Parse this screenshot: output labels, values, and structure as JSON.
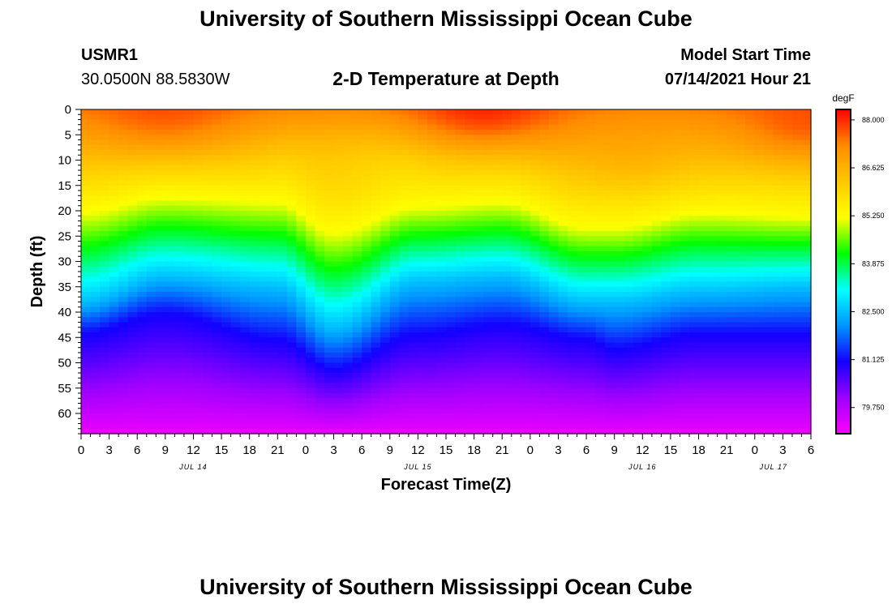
{
  "header": {
    "top_title": "University of Southern Mississippi Ocean Cube",
    "bottom_title": "University of Southern Mississippi Ocean Cube",
    "station_id": "USMR1",
    "coordinates": "30.0500N  88.5830W",
    "model_start_label": "Model Start Time",
    "model_start_value": "07/14/2021 Hour 21"
  },
  "chart_data": {
    "type": "heatmap",
    "title": "2-D Temperature at Depth",
    "xlabel": "Forecast Time(Z)",
    "ylabel": "Depth (ft)",
    "x_unit": "hours since 07/14 00Z",
    "xlim": [
      0,
      78
    ],
    "ylim": [
      0,
      64
    ],
    "x_tick_labels": [
      "0",
      "3",
      "6",
      "9",
      "12",
      "15",
      "18",
      "21",
      "0",
      "3",
      "6",
      "9",
      "12",
      "15",
      "18",
      "21",
      "0",
      "3",
      "6",
      "9",
      "12",
      "15",
      "18",
      "21",
      "0",
      "3",
      "6"
    ],
    "x_tick_step_hours": 3,
    "y_ticks": [
      0,
      5,
      10,
      15,
      20,
      25,
      30,
      35,
      40,
      45,
      50,
      55,
      60
    ],
    "date_labels": [
      {
        "text": "JUL 14",
        "hour": 12
      },
      {
        "text": "JUL 15",
        "hour": 36
      },
      {
        "text": "JUL 16",
        "hour": 60
      },
      {
        "text": "JUL 17",
        "hour": 74
      }
    ],
    "colorbar": {
      "unit": "degF",
      "min": 79.0,
      "max": 88.3,
      "ticks": [
        "88.000",
        "86.625",
        "85.250",
        "83.875",
        "82.500",
        "81.125",
        "79.750"
      ],
      "colors": [
        "#ff00ff",
        "#9b00ff",
        "#1400ff",
        "#0096ff",
        "#00ffff",
        "#00ff00",
        "#ffff00",
        "#ffc800",
        "#ff8c00",
        "#ff0000"
      ]
    },
    "profile_model": {
      "surface_temp": 87.3,
      "deep_temp": 79.2,
      "shallow_gradient_per_ft": 0.07,
      "isotherms": [
        {
          "temp": 85.25,
          "hours": [
            0,
            9,
            21,
            27,
            36,
            45,
            54,
            57,
            66,
            78
          ],
          "depths": [
            20,
            17,
            18,
            24,
            19,
            18,
            23,
            23,
            20,
            21
          ]
        },
        {
          "temp": 82.5,
          "hours": [
            0,
            9,
            21,
            27,
            36,
            45,
            54,
            57,
            66,
            78
          ],
          "depths": [
            38,
            33,
            35,
            43,
            34,
            33,
            38,
            38,
            36,
            35
          ]
        },
        {
          "temp": 81.125,
          "hours": [
            0,
            9,
            21,
            27,
            36,
            45,
            54,
            57,
            66,
            78
          ],
          "depths": [
            44,
            40,
            45,
            51,
            44,
            42,
            45,
            47,
            44,
            44
          ]
        }
      ],
      "surface_anomalies": [
        {
          "hour": 9,
          "depth": 4,
          "amp": 0.6
        },
        {
          "hour": 43,
          "depth": 2,
          "amp": 0.8
        },
        {
          "hour": 78,
          "depth": 5,
          "amp": 0.7
        },
        {
          "hour": 30,
          "depth": 8,
          "amp": -0.3
        },
        {
          "hour": 60,
          "depth": 12,
          "amp": 0.25
        }
      ]
    }
  }
}
